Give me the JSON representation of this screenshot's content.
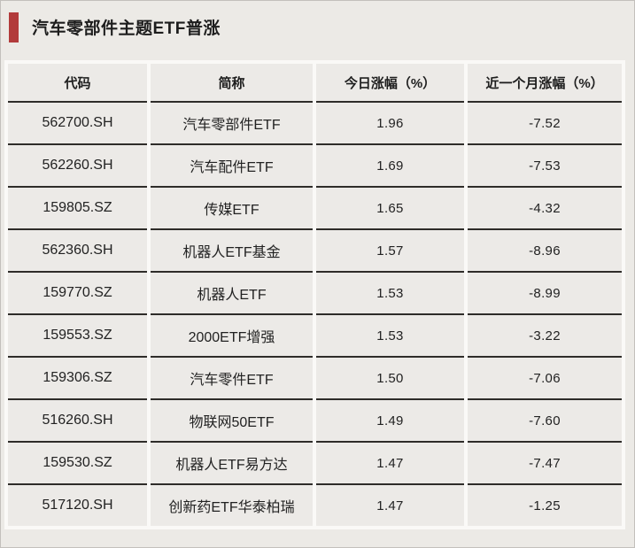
{
  "title": "汽车零部件主题ETF普涨",
  "colors": {
    "accent_red": "#B23B3B",
    "page_background": "#ECEAE6",
    "cell_background": "#ECEAE7",
    "gutter_white": "#FAF9F7",
    "row_divider": "#2E2C29",
    "text": "#222222"
  },
  "chart_data": {
    "type": "table",
    "title": "汽车零部件主题ETF普涨",
    "columns": [
      "代码",
      "简称",
      "今日涨幅（%）",
      "近一个月涨幅（%）"
    ],
    "rows": [
      [
        "562700.SH",
        "汽车零部件ETF",
        "1.96",
        "-7.52"
      ],
      [
        "562260.SH",
        "汽车配件ETF",
        "1.69",
        "-7.53"
      ],
      [
        "159805.SZ",
        "传媒ETF",
        "1.65",
        "-4.32"
      ],
      [
        "562360.SH",
        "机器人ETF基金",
        "1.57",
        "-8.96"
      ],
      [
        "159770.SZ",
        "机器人ETF",
        "1.53",
        "-8.99"
      ],
      [
        "159553.SZ",
        "2000ETF增强",
        "1.53",
        "-3.22"
      ],
      [
        "159306.SZ",
        "汽车零件ETF",
        "1.50",
        "-7.06"
      ],
      [
        "516260.SH",
        "物联网50ETF",
        "1.49",
        "-7.60"
      ],
      [
        "159530.SZ",
        "机器人ETF易方达",
        "1.47",
        "-7.47"
      ],
      [
        "517120.SH",
        "创新药ETF华泰柏瑞",
        "1.47",
        "-1.25"
      ]
    ]
  }
}
